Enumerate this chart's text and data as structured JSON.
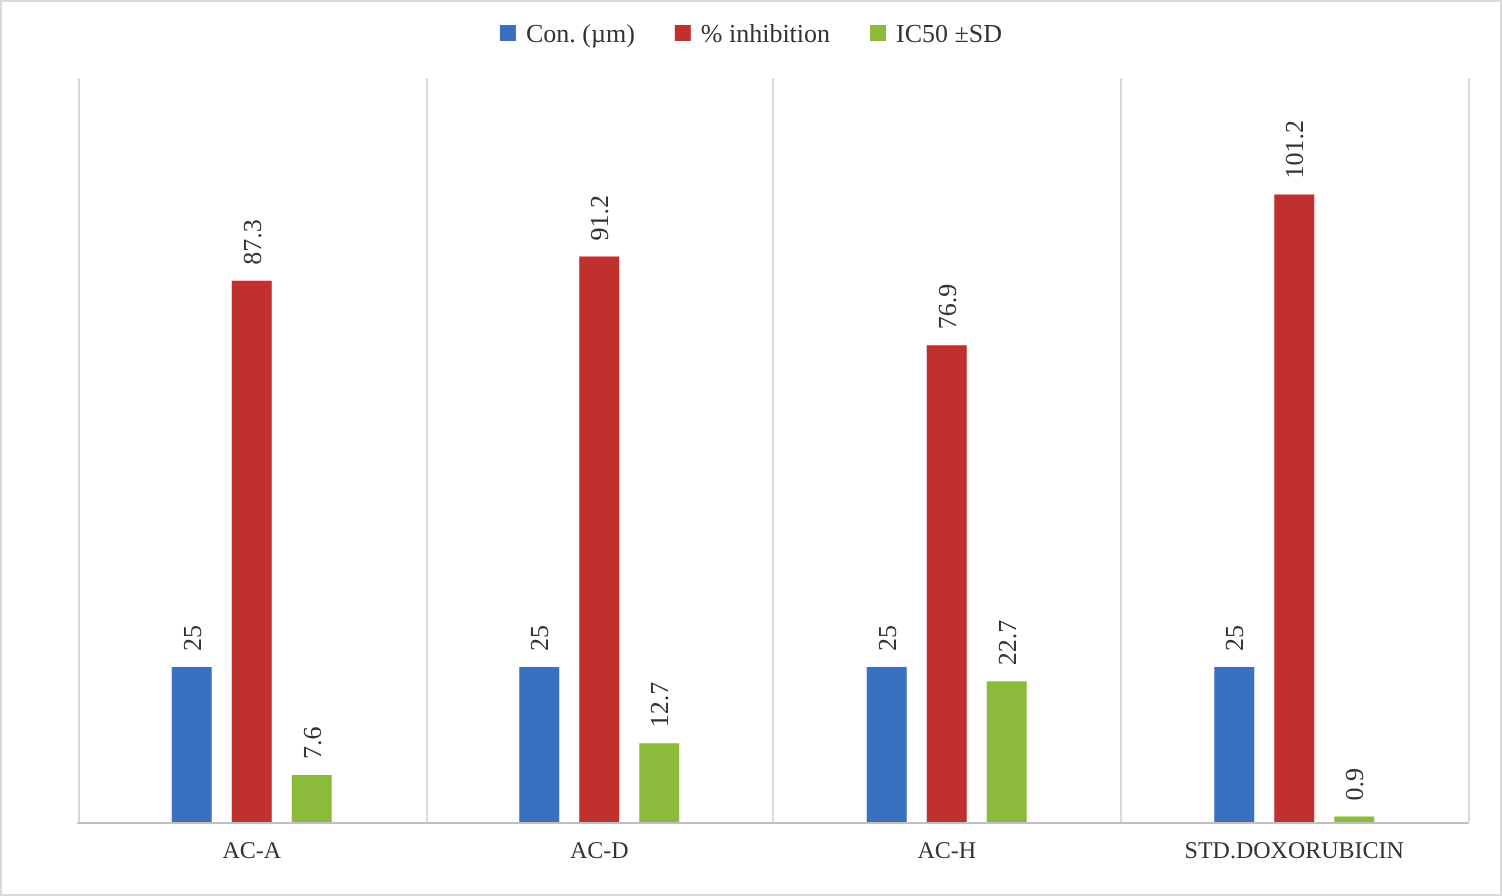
{
  "chart_data": {
    "type": "bar",
    "categories": [
      "AC-A",
      "AC-D",
      "AC-H",
      "STD.DOXORUBICIN"
    ],
    "series": [
      {
        "name": "Con. (µm)",
        "color": "#3a70c0",
        "values": [
          25,
          25,
          25,
          25
        ]
      },
      {
        "name": "% inhibition",
        "color": "#c0302e",
        "values": [
          87.3,
          91.2,
          76.9,
          101.2
        ]
      },
      {
        "name": "IC50 ±SD",
        "color": "#8cbb3c",
        "values": [
          7.6,
          12.7,
          22.7,
          0.9
        ]
      }
    ],
    "data_labels": true,
    "legend": "top",
    "grid": "x"
  }
}
